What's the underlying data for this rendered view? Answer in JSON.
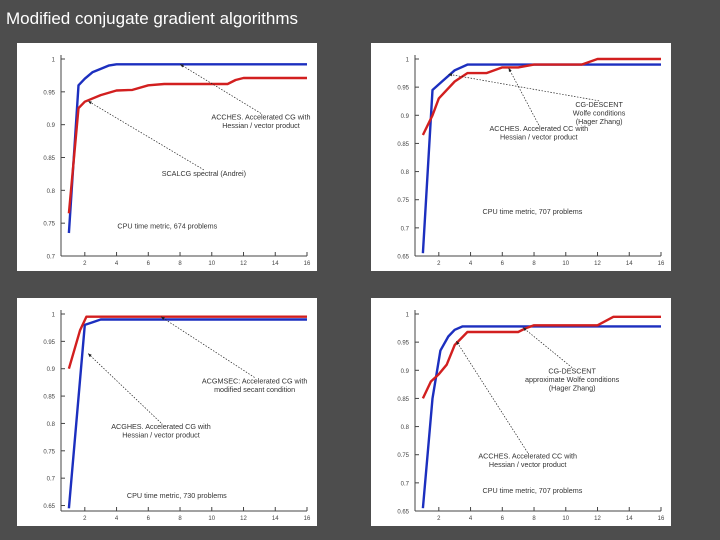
{
  "title": "Modified conjugate gradient algorithms",
  "colors": {
    "background": "#4d4d4d",
    "blue": "#1c2fbf",
    "red": "#d21f1f"
  },
  "chart_data": [
    {
      "type": "line",
      "x_ticks": [
        "2",
        "4",
        "6",
        "8",
        "10",
        "12",
        "14",
        "16"
      ],
      "y_ticks": [
        "1",
        "0.95",
        "0.9",
        "0.85",
        "0.8",
        "0.75",
        "0.7"
      ],
      "ylim": [
        0.7,
        1.0
      ],
      "xlim": [
        0.5,
        16
      ],
      "series": [
        {
          "color": "#1c2fbf",
          "x": [
            1,
            1.6,
            2,
            2.5,
            3,
            3.5,
            4,
            16
          ],
          "y": [
            0.735,
            0.96,
            0.97,
            0.98,
            0.985,
            0.99,
            0.992,
            0.992
          ]
        },
        {
          "color": "#d21f1f",
          "x": [
            1,
            1.6,
            2,
            3,
            4,
            5,
            6,
            7,
            11,
            11.5,
            12,
            16
          ],
          "y": [
            0.765,
            0.925,
            0.935,
            0.945,
            0.952,
            0.953,
            0.96,
            0.962,
            0.962,
            0.968,
            0.971,
            0.971
          ]
        }
      ],
      "annotations": [
        {
          "text": "ACCHES. Accelerated CG with\nHessian / vector product",
          "pos": [
            13.1,
            0.908
          ],
          "arrow_to": [
            8,
            0.992
          ]
        },
        {
          "text": "SCALCG spectral (Andrei)",
          "pos": [
            9.5,
            0.822
          ],
          "arrow_to": [
            2.2,
            0.936
          ]
        },
        {
          "text": "CPU time metric, 674 problems",
          "pos": [
            7.2,
            0.742
          ]
        }
      ]
    },
    {
      "type": "line",
      "x_ticks": [
        "2",
        "4",
        "6",
        "8",
        "10",
        "12",
        "14",
        "16"
      ],
      "y_ticks": [
        "1",
        "0.95",
        "0.9",
        "0.85",
        "0.8",
        "0.75",
        "0.7",
        "0.65"
      ],
      "ylim": [
        0.65,
        1.0
      ],
      "xlim": [
        0.5,
        16
      ],
      "series": [
        {
          "color": "#1c2fbf",
          "x": [
            1,
            1.6,
            2.2,
            3,
            3.8,
            16
          ],
          "y": [
            0.655,
            0.945,
            0.96,
            0.98,
            0.99,
            0.99
          ]
        },
        {
          "color": "#d21f1f",
          "x": [
            1,
            1.6,
            2,
            3,
            3.8,
            5,
            6,
            7,
            8,
            11,
            12,
            16
          ],
          "y": [
            0.865,
            0.9,
            0.93,
            0.96,
            0.975,
            0.975,
            0.985,
            0.985,
            0.99,
            0.99,
            1.0,
            1.0
          ]
        }
      ],
      "annotations": [
        {
          "text": "CG-DESCENT\nWolfe conditions\n(Hager Zhang)",
          "pos": [
            12.1,
            0.915
          ],
          "arrow_to": [
            2.6,
            0.973
          ]
        },
        {
          "text": "ACCHES. Accelerated CC with\nHessian / vector product",
          "pos": [
            8.3,
            0.872
          ],
          "arrow_to": [
            6.4,
            0.984
          ]
        },
        {
          "text": "CPU time metric, 707 problems",
          "pos": [
            7.9,
            0.725
          ]
        }
      ]
    },
    {
      "type": "line",
      "x_ticks": [
        "2",
        "4",
        "6",
        "8",
        "10",
        "12",
        "14",
        "16"
      ],
      "y_ticks": [
        "1",
        "0.95",
        "0.9",
        "0.85",
        "0.8",
        "0.75",
        "0.7",
        "0.65"
      ],
      "ylim": [
        0.64,
        1.0
      ],
      "xlim": [
        0.5,
        16
      ],
      "series": [
        {
          "color": "#1c2fbf",
          "x": [
            1,
            2,
            2.5,
            3,
            16
          ],
          "y": [
            0.645,
            0.98,
            0.985,
            0.99,
            0.99
          ]
        },
        {
          "color": "#d21f1f",
          "x": [
            1,
            1.7,
            2.1,
            16
          ],
          "y": [
            0.9,
            0.97,
            0.995,
            0.995
          ]
        }
      ],
      "annotations": [
        {
          "text": "ACGMSEC: Accelerated CG with\nmodified secant condition",
          "pos": [
            12.7,
            0.873
          ],
          "arrow_to": [
            6.8,
            0.995
          ]
        },
        {
          "text": "ACGHES. Accelerated CG with\nHessian / vector product",
          "pos": [
            6.8,
            0.79
          ],
          "arrow_to": [
            2.2,
            0.928
          ]
        },
        {
          "text": "CPU time metric, 730 problems",
          "pos": [
            7.8,
            0.664
          ]
        }
      ]
    },
    {
      "type": "line",
      "x_ticks": [
        "2",
        "4",
        "6",
        "8",
        "10",
        "12",
        "14",
        "16"
      ],
      "y_ticks": [
        "1",
        "0.95",
        "0.9",
        "0.85",
        "0.8",
        "0.75",
        "0.7",
        "0.65"
      ],
      "ylim": [
        0.65,
        1.0
      ],
      "xlim": [
        0.5,
        16
      ],
      "series": [
        {
          "color": "#1c2fbf",
          "x": [
            1,
            1.6,
            2.1,
            2.6,
            3,
            3.5,
            16
          ],
          "y": [
            0.655,
            0.85,
            0.935,
            0.96,
            0.972,
            0.978,
            0.978
          ]
        },
        {
          "color": "#d21f1f",
          "x": [
            1,
            1.5,
            2,
            2.5,
            3,
            3.8,
            7,
            7.5,
            8,
            12,
            13,
            16
          ],
          "y": [
            0.85,
            0.88,
            0.893,
            0.91,
            0.945,
            0.968,
            0.968,
            0.975,
            0.98,
            0.98,
            0.995,
            0.995
          ]
        }
      ],
      "annotations": [
        {
          "text": "CG-DESCENT\napproximate Wolfe conditions\n(Hager Zhang)",
          "pos": [
            10.4,
            0.894
          ],
          "arrow_to": [
            7.3,
            0.976
          ]
        },
        {
          "text": "ACCHES. Accelerated CC with\nHessian / vector product",
          "pos": [
            7.6,
            0.743
          ],
          "arrow_to": [
            3.1,
            0.952
          ]
        },
        {
          "text": "CPU time metric, 707 problems",
          "pos": [
            7.9,
            0.682
          ]
        }
      ]
    }
  ]
}
